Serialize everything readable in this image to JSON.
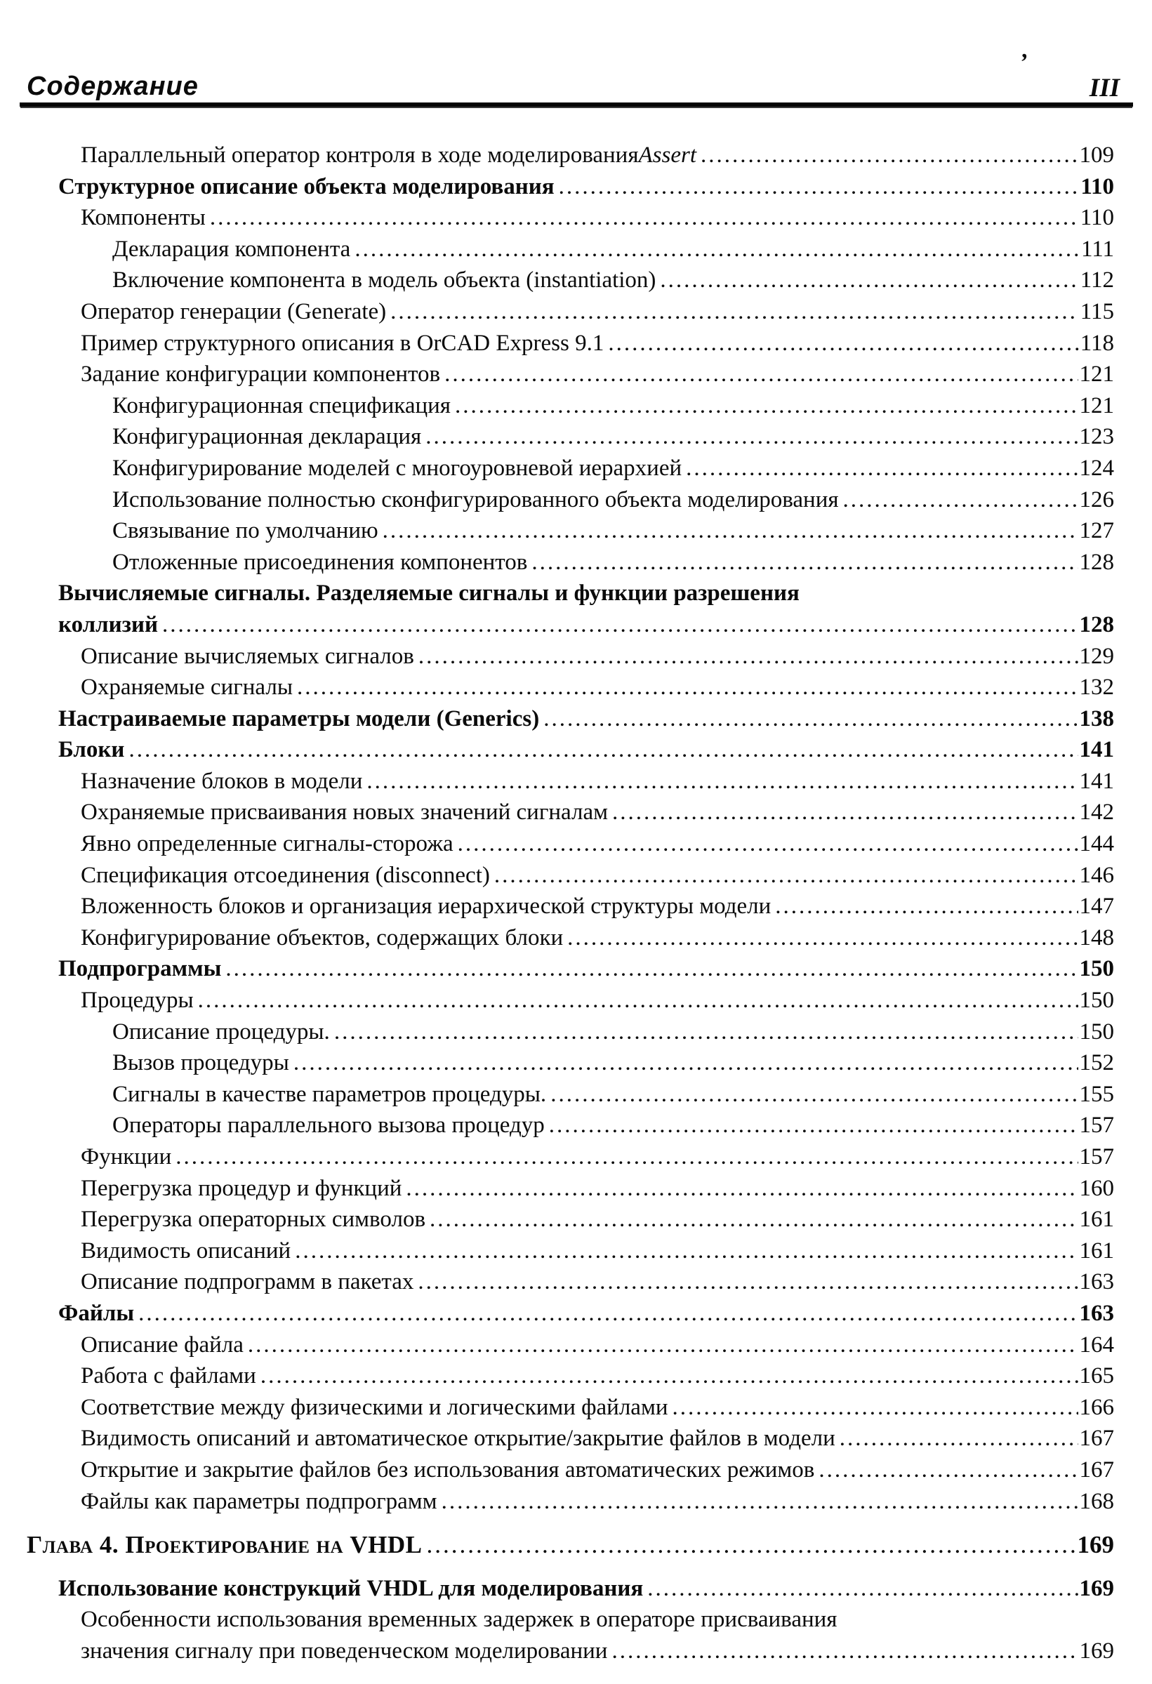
{
  "header": {
    "title": "Содержание",
    "page_number": "III",
    "stray_mark": "’"
  },
  "toc": {
    "entries": [
      {
        "level": "1",
        "text": "Параллельный оператор контроля в ходе моделирования",
        "tail_italic": " Assert",
        "page": "109"
      },
      {
        "level": "0",
        "bold": true,
        "text": "Структурное описание объекта моделирования",
        "page": "110"
      },
      {
        "level": "1",
        "text": "Компоненты",
        "page": "110"
      },
      {
        "level": "2",
        "text": "Декларация компонента",
        "page": "111"
      },
      {
        "level": "2",
        "text": "Включение компонента в модель объекта (instantiation)",
        "page": "112"
      },
      {
        "level": "1",
        "text": "Оператор генерации (Generate)",
        "page": "115"
      },
      {
        "level": "1",
        "text": "Пример структурного описания  в OrCAD Express 9.1",
        "page": "118"
      },
      {
        "level": "1",
        "text": "Задание конфигурации компонентов",
        "page": "121"
      },
      {
        "level": "2",
        "text": "Конфигурационная спецификация",
        "page": "121"
      },
      {
        "level": "2",
        "text": "Конфигурационная декларация",
        "page": "123"
      },
      {
        "level": "2",
        "text": "Конфигурирование моделей с многоуровневой иерархией",
        "page": "124"
      },
      {
        "level": "2",
        "text": "Использование полностью сконфигурированного  объекта моделирования",
        "page": "126"
      },
      {
        "level": "2",
        "text": "Связывание по умолчанию",
        "page": "127"
      },
      {
        "level": "2",
        "text": "Отложенные присоединения компонентов",
        "page": "128"
      },
      {
        "level": "0",
        "bold": true,
        "lines": [
          "Вычисляемые сигналы. Разделяемые сигналы и функции разрешения",
          "коллизий"
        ],
        "page": "128"
      },
      {
        "level": "1",
        "text": "Описание вычисляемых сигналов",
        "page": "129"
      },
      {
        "level": "1",
        "text": "Охраняемые сигналы",
        "page": "132"
      },
      {
        "level": "0",
        "bold": true,
        "text": "Настраиваемые параметры модели (Generics)",
        "page": "138"
      },
      {
        "level": "0",
        "bold": true,
        "text": "Блоки",
        "page": "141"
      },
      {
        "level": "1",
        "text": "Назначение блоков в модели",
        "page": "141"
      },
      {
        "level": "1",
        "text": "Охраняемые присваивания новых  значений сигналам",
        "page": "142"
      },
      {
        "level": "1",
        "text": "Явно определенные сигналы-сторожа",
        "page": "144"
      },
      {
        "level": "1",
        "text": "Спецификация отсоединения (disconnect)",
        "page": "146"
      },
      {
        "level": "1",
        "text": "Вложенность блоков и организация  иерархической структуры модели",
        "page": "147"
      },
      {
        "level": "1",
        "text": "Конфигурирование объектов, содержащих блоки",
        "page": "148"
      },
      {
        "level": "0",
        "bold": true,
        "text": "Подпрограммы",
        "page": "150"
      },
      {
        "level": "1",
        "text": "Процедуры",
        "page": "150"
      },
      {
        "level": "2",
        "text": "Описание процедуры.",
        "page": "150"
      },
      {
        "level": "2",
        "text": "Вызов процедуры",
        "page": "152"
      },
      {
        "level": "2",
        "text": "Сигналы в качестве параметров процедуры.",
        "page": "155"
      },
      {
        "level": "2",
        "text": "Операторы параллельного вызова процедур",
        "page": "157"
      },
      {
        "level": "1",
        "text": "Функции",
        "page": "157"
      },
      {
        "level": "1",
        "text": "Перегрузка процедур и функций",
        "page": "160"
      },
      {
        "level": "1",
        "text": "Перегрузка операторных символов",
        "page": "161"
      },
      {
        "level": "1",
        "text": "Видимость описаний",
        "page": "161"
      },
      {
        "level": "1",
        "text": "Описание подпрограмм в пакетах",
        "page": "163"
      },
      {
        "level": "0",
        "bold": true,
        "text": "Файлы",
        "page": "163"
      },
      {
        "level": "1",
        "text": "Описание файла",
        "page": "164"
      },
      {
        "level": "1",
        "text": "Работа с файлами",
        "page": "165"
      },
      {
        "level": "1",
        "text": "Соответствие между физическими  и логическими файлами",
        "page": "166"
      },
      {
        "level": "1",
        "text": "Видимость описаний и автоматическое открытие/закрытие файлов в модели",
        "page": "167"
      },
      {
        "level": "1",
        "text": "Открытие и закрытие файлов без использования автоматических режимов",
        "page": "167"
      },
      {
        "level": "1",
        "text": "Файлы как параметры подпрограмм",
        "page": "168"
      },
      {
        "level": "chapter",
        "bold": true,
        "smallcaps": true,
        "gap_before": 18,
        "text": "Глава 4. Проектирование на VHDL",
        "page": "169"
      },
      {
        "level": "0",
        "bold": true,
        "gap_before": 17,
        "text": "Использование конструкций VHDL для моделирования",
        "page": "169"
      },
      {
        "level": "1",
        "lines": [
          "Особенности использования временных задержек  в операторе присваивания",
          "значения сигналу при поведенческом моделировании"
        ],
        "page": "169"
      }
    ]
  }
}
